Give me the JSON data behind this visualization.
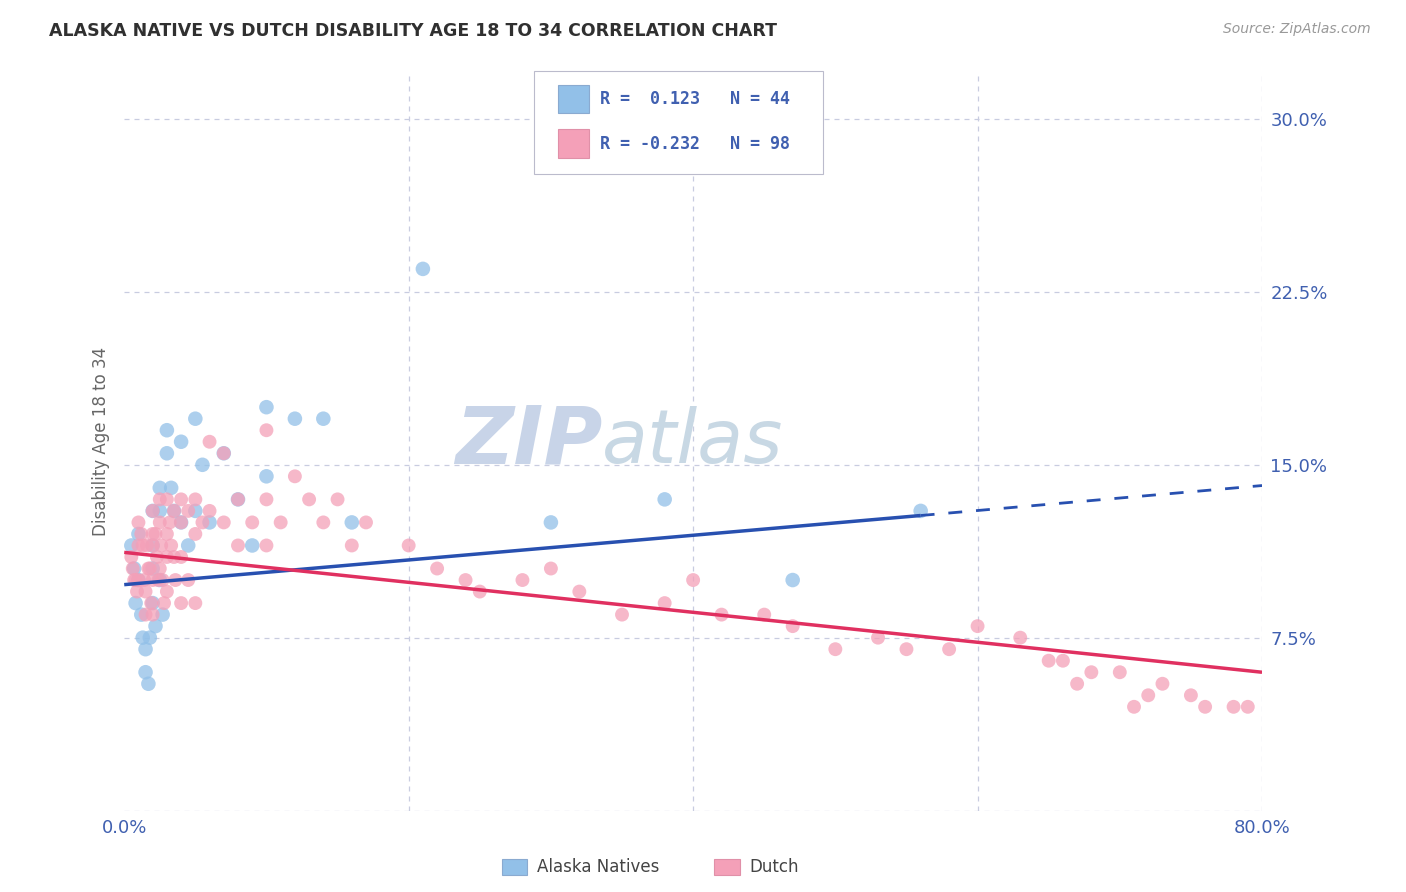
{
  "title": "ALASKA NATIVE VS DUTCH DISABILITY AGE 18 TO 34 CORRELATION CHART",
  "source": "Source: ZipAtlas.com",
  "ylabel": "Disability Age 18 to 34",
  "xlim": [
    0.0,
    0.8
  ],
  "ylim": [
    0.0,
    0.32
  ],
  "xticks": [
    0.0,
    0.2,
    0.4,
    0.6,
    0.8
  ],
  "xticklabels": [
    "0.0%",
    "",
    "",
    "",
    "80.0%"
  ],
  "yticks": [
    0.0,
    0.075,
    0.15,
    0.225,
    0.3
  ],
  "yticklabels": [
    "",
    "7.5%",
    "15.0%",
    "22.5%",
    "30.0%"
  ],
  "blue_color": "#92C0E8",
  "pink_color": "#F4A0B8",
  "blue_line_color": "#2850B0",
  "pink_line_color": "#E03060",
  "tick_color": "#4060B0",
  "background_color": "#FFFFFF",
  "grid_color": "#C8CCE0",
  "watermark_color": "#DCE4F0",
  "alaska_line_x0": 0.0,
  "alaska_line_y0": 0.098,
  "alaska_line_x1": 0.56,
  "alaska_line_y1": 0.128,
  "alaska_line_x2": 0.8,
  "alaska_line_y2": 0.141,
  "dutch_line_x0": 0.0,
  "dutch_line_y0": 0.112,
  "dutch_line_x1": 0.8,
  "dutch_line_y1": 0.06,
  "alaska_points_x": [
    0.005,
    0.007,
    0.008,
    0.01,
    0.01,
    0.012,
    0.013,
    0.015,
    0.015,
    0.017,
    0.018,
    0.02,
    0.02,
    0.02,
    0.02,
    0.022,
    0.025,
    0.025,
    0.025,
    0.027,
    0.03,
    0.03,
    0.033,
    0.035,
    0.04,
    0.04,
    0.045,
    0.05,
    0.05,
    0.055,
    0.06,
    0.07,
    0.08,
    0.09,
    0.1,
    0.1,
    0.12,
    0.14,
    0.16,
    0.21,
    0.3,
    0.38,
    0.47,
    0.56
  ],
  "alaska_points_y": [
    0.115,
    0.105,
    0.09,
    0.12,
    0.1,
    0.085,
    0.075,
    0.07,
    0.06,
    0.055,
    0.075,
    0.13,
    0.115,
    0.105,
    0.09,
    0.08,
    0.14,
    0.13,
    0.1,
    0.085,
    0.165,
    0.155,
    0.14,
    0.13,
    0.16,
    0.125,
    0.115,
    0.17,
    0.13,
    0.15,
    0.125,
    0.155,
    0.135,
    0.115,
    0.175,
    0.145,
    0.17,
    0.17,
    0.125,
    0.235,
    0.125,
    0.135,
    0.1,
    0.13
  ],
  "dutch_points_x": [
    0.005,
    0.006,
    0.007,
    0.008,
    0.009,
    0.01,
    0.01,
    0.01,
    0.012,
    0.013,
    0.014,
    0.015,
    0.015,
    0.016,
    0.017,
    0.018,
    0.019,
    0.02,
    0.02,
    0.02,
    0.02,
    0.02,
    0.022,
    0.023,
    0.024,
    0.025,
    0.025,
    0.025,
    0.026,
    0.027,
    0.028,
    0.03,
    0.03,
    0.03,
    0.03,
    0.032,
    0.033,
    0.035,
    0.035,
    0.036,
    0.04,
    0.04,
    0.04,
    0.04,
    0.045,
    0.045,
    0.05,
    0.05,
    0.05,
    0.055,
    0.06,
    0.06,
    0.07,
    0.07,
    0.08,
    0.08,
    0.09,
    0.1,
    0.1,
    0.1,
    0.11,
    0.12,
    0.13,
    0.14,
    0.15,
    0.16,
    0.17,
    0.2,
    0.22,
    0.24,
    0.25,
    0.28,
    0.3,
    0.32,
    0.35,
    0.38,
    0.4,
    0.42,
    0.45,
    0.47,
    0.5,
    0.53,
    0.55,
    0.58,
    0.6,
    0.63,
    0.65,
    0.66,
    0.67,
    0.68,
    0.7,
    0.71,
    0.72,
    0.73,
    0.75,
    0.76,
    0.78,
    0.79
  ],
  "dutch_points_y": [
    0.11,
    0.105,
    0.1,
    0.1,
    0.095,
    0.125,
    0.115,
    0.1,
    0.12,
    0.115,
    0.1,
    0.095,
    0.085,
    0.115,
    0.105,
    0.105,
    0.09,
    0.13,
    0.12,
    0.115,
    0.1,
    0.085,
    0.12,
    0.11,
    0.1,
    0.135,
    0.125,
    0.105,
    0.115,
    0.1,
    0.09,
    0.135,
    0.12,
    0.11,
    0.095,
    0.125,
    0.115,
    0.13,
    0.11,
    0.1,
    0.135,
    0.125,
    0.11,
    0.09,
    0.13,
    0.1,
    0.135,
    0.12,
    0.09,
    0.125,
    0.16,
    0.13,
    0.155,
    0.125,
    0.135,
    0.115,
    0.125,
    0.165,
    0.135,
    0.115,
    0.125,
    0.145,
    0.135,
    0.125,
    0.135,
    0.115,
    0.125,
    0.115,
    0.105,
    0.1,
    0.095,
    0.1,
    0.105,
    0.095,
    0.085,
    0.09,
    0.1,
    0.085,
    0.085,
    0.08,
    0.07,
    0.075,
    0.07,
    0.07,
    0.08,
    0.075,
    0.065,
    0.065,
    0.055,
    0.06,
    0.06,
    0.045,
    0.05,
    0.055,
    0.05,
    0.045,
    0.045,
    0.045
  ]
}
